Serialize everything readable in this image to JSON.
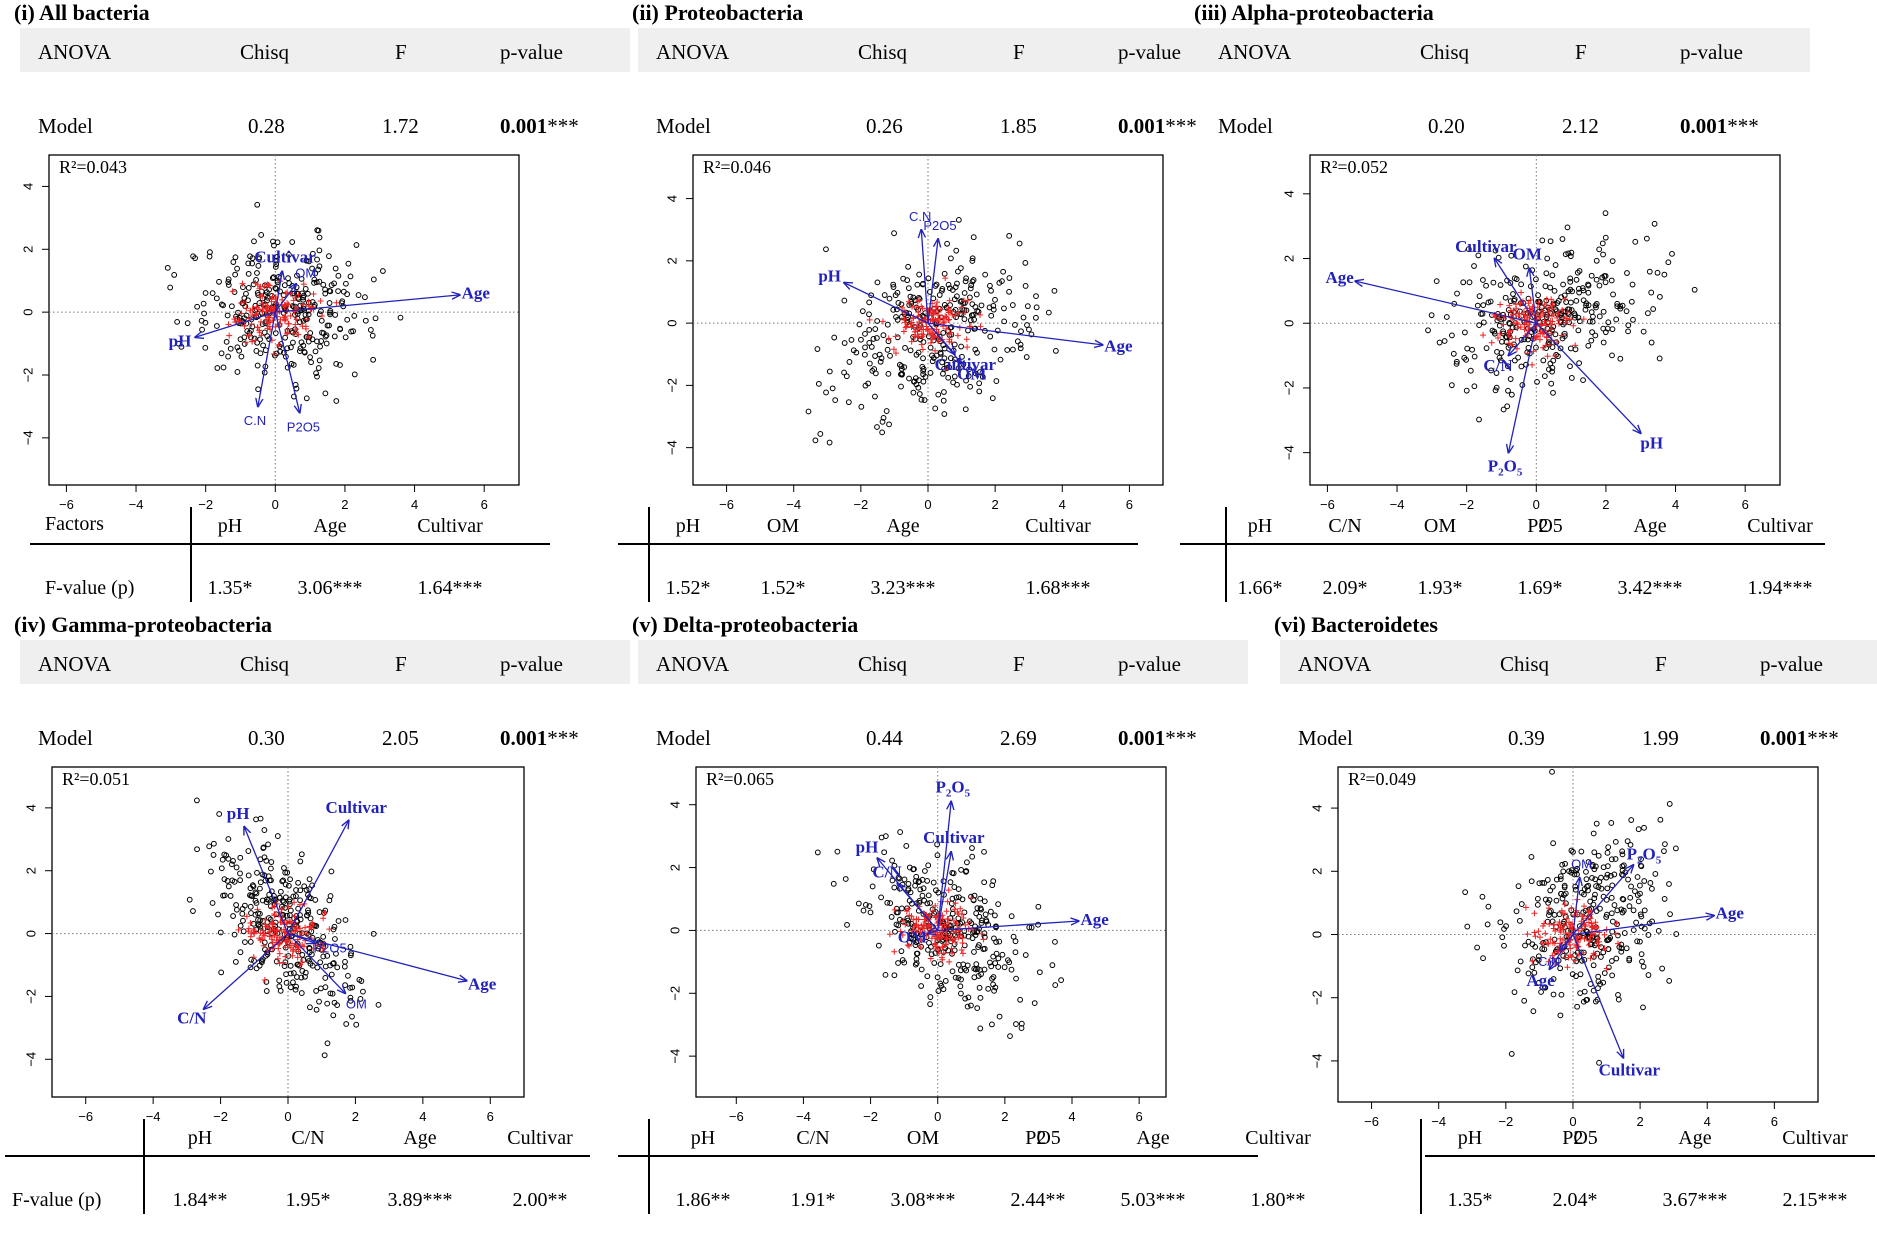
{
  "anova_headers": [
    "ANOVA",
    "Chisq",
    "F",
    "p-value"
  ],
  "model_label": "Model",
  "chart_data": [
    {
      "type": "scatter",
      "title": "(i) All bacteria",
      "anova_model": {
        "chisq": "0.28",
        "f": "1.72",
        "p": "0.001",
        "stars": "***"
      },
      "r2": "R²=0.043",
      "xlim": [
        -6.5,
        7
      ],
      "ylim": [
        -5.5,
        5
      ],
      "xticks": [
        -6,
        -4,
        -2,
        0,
        2,
        4,
        6
      ],
      "yticks": [
        -4,
        -2,
        0,
        2,
        4
      ],
      "vectors": [
        {
          "label": "Age",
          "x": 5.3,
          "y": 0.55,
          "bold": true
        },
        {
          "label": "pH",
          "x": -2.3,
          "y": -0.8,
          "bold": true
        },
        {
          "label": "Cultivar",
          "x": 0.2,
          "y": 1.3,
          "bold": true
        },
        {
          "label": "OM",
          "x": 0.6,
          "y": 0.9,
          "bold": false
        },
        {
          "label": "C.N",
          "x": -0.5,
          "y": -3.0,
          "bold": false
        },
        {
          "label": "P2O5",
          "x": 0.7,
          "y": -3.2,
          "bold": false
        }
      ],
      "cloud": {
        "cx": 0.2,
        "cy": 0.1,
        "sx": 1.3,
        "sy": 1.1,
        "rho": 0,
        "n": 320
      },
      "factors": {
        "row_label": "Factors",
        "value_label": "F-value (p)",
        "names": [
          "pH",
          "Age",
          "Cultivar"
        ],
        "values": [
          "1.35*",
          "3.06***",
          "1.64***"
        ]
      }
    },
    {
      "type": "scatter",
      "title": "(ii) Proteobacteria",
      "anova_model": {
        "chisq": "0.26",
        "f": "1.85",
        "p": "0.001",
        "stars": "***"
      },
      "r2": "R²=0.046",
      "xlim": [
        -7,
        7
      ],
      "ylim": [
        -5.2,
        5.4
      ],
      "xticks": [
        -6,
        -4,
        -2,
        0,
        2,
        4,
        6
      ],
      "yticks": [
        -4,
        -2,
        0,
        2,
        4
      ],
      "vectors": [
        {
          "label": "Age",
          "x": 5.2,
          "y": -0.7,
          "bold": true
        },
        {
          "label": "pH",
          "x": -2.5,
          "y": 1.3,
          "bold": true
        },
        {
          "label": "C.N",
          "x": -0.2,
          "y": 3.0,
          "bold": false
        },
        {
          "label": "P2O5",
          "x": 0.3,
          "y": 2.7,
          "bold": false
        },
        {
          "label": "Cultivar",
          "x": 0.8,
          "y": -1.0,
          "bold": true
        },
        {
          "label": "OM",
          "x": 1.0,
          "y": -1.3,
          "bold": true
        }
      ],
      "cloud": {
        "cx": 0.2,
        "cy": -0.3,
        "sx": 1.4,
        "sy": 1.3,
        "rho": 0.3,
        "n": 320
      },
      "factors": {
        "row_label": "",
        "value_label": "",
        "names": [
          "pH",
          "OM",
          "Age",
          "Cultivar"
        ],
        "values": [
          "1.52*",
          "1.52*",
          "3.23***",
          "1.68***"
        ]
      }
    },
    {
      "type": "scatter",
      "title": "(iii) Alpha-proteobacteria",
      "anova_model": {
        "chisq": "0.20",
        "f": "2.12",
        "p": "0.001",
        "stars": "***"
      },
      "r2": "R²=0.052",
      "xlim": [
        -6.5,
        7
      ],
      "ylim": [
        -5,
        5.2
      ],
      "xticks": [
        -6,
        -4,
        -2,
        0,
        2,
        4,
        6
      ],
      "yticks": [
        -4,
        -2,
        0,
        2,
        4
      ],
      "vectors": [
        {
          "label": "Age",
          "x": -5.2,
          "y": 1.3,
          "bold": true
        },
        {
          "label": "Cultivar",
          "x": -1.2,
          "y": 2.0,
          "bold": true
        },
        {
          "label": "OM",
          "x": -0.2,
          "y": 1.7,
          "bold": true
        },
        {
          "label": "C/N",
          "x": -0.8,
          "y": -1.0,
          "bold": true
        },
        {
          "label": "P2O5",
          "x": -0.8,
          "y": -4.0,
          "bold": true
        },
        {
          "label": "pH",
          "x": 3.0,
          "y": -3.4,
          "bold": true
        }
      ],
      "cloud": {
        "cx": 0.3,
        "cy": 0.2,
        "sx": 1.4,
        "sy": 1.0,
        "rho": 0.3,
        "n": 320
      },
      "factors": {
        "row_label": "",
        "value_label": "",
        "names": [
          "pH",
          "C/N",
          "OM",
          "P2O5",
          "Age",
          "Cultivar"
        ],
        "values": [
          "1.66*",
          "2.09*",
          "1.93*",
          "1.69*",
          "3.42***",
          "1.94***"
        ]
      }
    },
    {
      "type": "scatter",
      "title": "(iv) Gamma-proteobacteria",
      "anova_model": {
        "chisq": "0.30",
        "f": "2.05",
        "p": "0.001",
        "stars": "***"
      },
      "r2": "R²=0.051",
      "xlim": [
        -7,
        7
      ],
      "ylim": [
        -5.2,
        5.3
      ],
      "xticks": [
        -6,
        -4,
        -2,
        0,
        2,
        4,
        6
      ],
      "yticks": [
        -4,
        -2,
        0,
        2,
        4
      ],
      "vectors": [
        {
          "label": "pH",
          "x": -1.3,
          "y": 3.4,
          "bold": true
        },
        {
          "label": "Cultivar",
          "x": 1.8,
          "y": 3.6,
          "bold": true
        },
        {
          "label": "Age",
          "x": 5.3,
          "y": -1.5,
          "bold": true
        },
        {
          "label": "C/N",
          "x": -2.5,
          "y": -2.4,
          "bold": true
        },
        {
          "label": "P2O5",
          "x": 0.8,
          "y": -0.3,
          "bold": false
        },
        {
          "label": "OM",
          "x": 1.7,
          "y": -1.9,
          "bold": false
        }
      ],
      "cloud": {
        "cx": 0.0,
        "cy": 0.2,
        "sx": 1.1,
        "sy": 1.4,
        "rho": -0.6,
        "n": 320
      },
      "factors": {
        "row_label": "",
        "value_label": "F-value (p)",
        "names": [
          "pH",
          "C/N",
          "Age",
          "Cultivar"
        ],
        "values": [
          "1.84**",
          "1.95*",
          "3.89***",
          "2.00**"
        ]
      }
    },
    {
      "type": "scatter",
      "title": "(v) Delta-proteobacteria",
      "anova_model": {
        "chisq": "0.44",
        "f": "2.69",
        "p": "0.001",
        "stars": "***"
      },
      "r2": "R²=0.065",
      "xlim": [
        -7.2,
        6.8
      ],
      "ylim": [
        -5.3,
        5.2
      ],
      "xticks": [
        -6,
        -4,
        -2,
        0,
        2,
        4,
        6
      ],
      "yticks": [
        -4,
        -2,
        0,
        2,
        4
      ],
      "vectors": [
        {
          "label": "P2O5",
          "x": 0.4,
          "y": 4.1,
          "bold": true
        },
        {
          "label": "pH",
          "x": -1.8,
          "y": 2.3,
          "bold": true
        },
        {
          "label": "Cultivar",
          "x": 0.4,
          "y": 2.5,
          "bold": true
        },
        {
          "label": "C/N",
          "x": -1.2,
          "y": 1.5,
          "bold": true
        },
        {
          "label": "Age",
          "x": 4.2,
          "y": 0.3,
          "bold": true
        },
        {
          "label": "OM",
          "x": -0.3,
          "y": -0.1,
          "bold": true
        }
      ],
      "cloud": {
        "cx": 0.2,
        "cy": 0.2,
        "sx": 1.3,
        "sy": 1.3,
        "rho": -0.4,
        "n": 320
      },
      "factors": {
        "row_label": "",
        "value_label": "",
        "names": [
          "pH",
          "C/N",
          "OM",
          "P2O5",
          "Age",
          "Cultivar"
        ],
        "values": [
          "1.86**",
          "1.91*",
          "3.08***",
          "2.44**",
          "5.03***",
          "1.80**"
        ]
      }
    },
    {
      "type": "scatter",
      "title": "(vi) Bacteroidetes",
      "anova_model": {
        "chisq": "0.39",
        "f": "1.99",
        "p": "0.001",
        "stars": "***"
      },
      "r2": "R²=0.049",
      "xlim": [
        -7,
        7.3
      ],
      "ylim": [
        -5.3,
        5.3
      ],
      "xticks": [
        -6,
        -4,
        -2,
        0,
        2,
        4,
        6
      ],
      "yticks": [
        -4,
        -2,
        0,
        2,
        4
      ],
      "vectors": [
        {
          "label": "Age",
          "x": 4.2,
          "y": 0.6,
          "bold": true
        },
        {
          "label": "P2O5",
          "x": 1.8,
          "y": 2.2,
          "bold": true
        },
        {
          "label": "OM",
          "x": 0.2,
          "y": 1.8,
          "bold": false
        },
        {
          "label": "C/N",
          "x": -0.4,
          "y": -0.5,
          "bold": false
        },
        {
          "label": "Age",
          "x": -0.7,
          "y": -1.1,
          "bold": true
        },
        {
          "label": "Cultivar",
          "x": 1.5,
          "y": -3.9,
          "bold": true
        }
      ],
      "cloud": {
        "cx": 0.4,
        "cy": 0.5,
        "sx": 1.2,
        "sy": 1.4,
        "rho": 0.1,
        "n": 320
      },
      "factors": {
        "row_label": "",
        "value_label": "",
        "names": [
          "pH",
          "P2O5",
          "Age",
          "Cultivar"
        ],
        "values": [
          "1.35*",
          "2.04*",
          "3.67***",
          "2.15***"
        ]
      }
    }
  ]
}
